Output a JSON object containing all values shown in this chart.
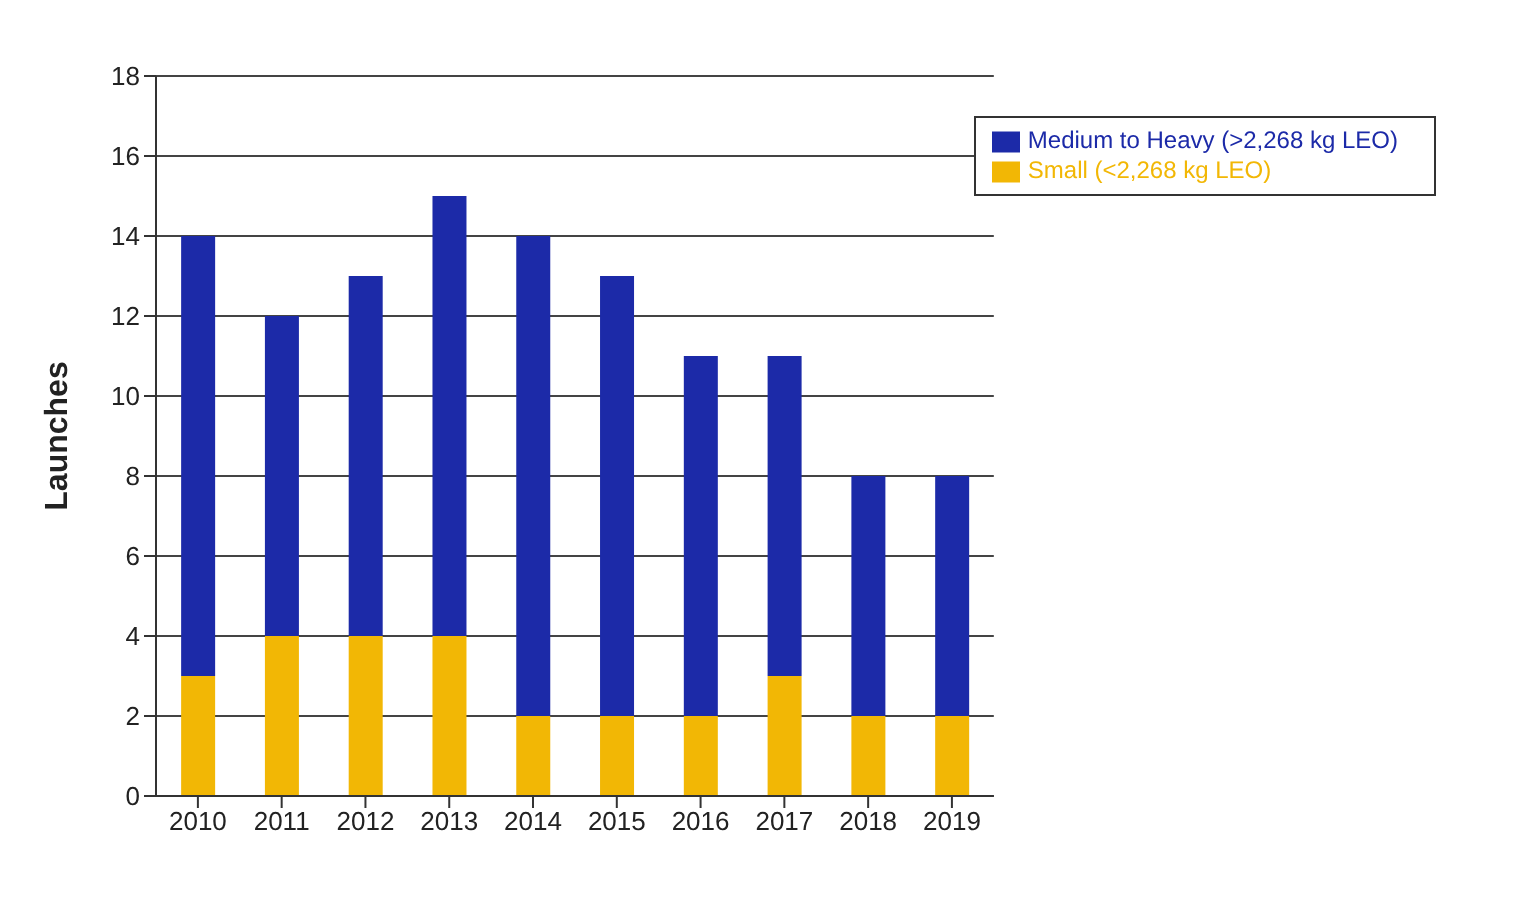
{
  "chart_data": {
    "type": "bar",
    "stacked": true,
    "ylabel": "Launches",
    "categories": [
      "2010",
      "2011",
      "2012",
      "2013",
      "2014",
      "2015",
      "2016",
      "2017",
      "2018",
      "2019"
    ],
    "series": [
      {
        "name": "Small (<2,268 kg LEO)",
        "color": "#f2b705",
        "values": [
          3,
          4,
          4,
          4,
          2,
          2,
          2,
          3,
          2,
          2
        ]
      },
      {
        "name": "Medium to Heavy (>2,268 kg LEO)",
        "color": "#1c2aa8",
        "values": [
          11,
          8,
          9,
          11,
          12,
          11,
          9,
          8,
          6,
          6
        ]
      }
    ],
    "ylim": [
      0,
      18
    ],
    "yticks": [
      0,
      2,
      4,
      6,
      8,
      10,
      12,
      14,
      16,
      18
    ],
    "grid": "y",
    "legend": "top right"
  }
}
